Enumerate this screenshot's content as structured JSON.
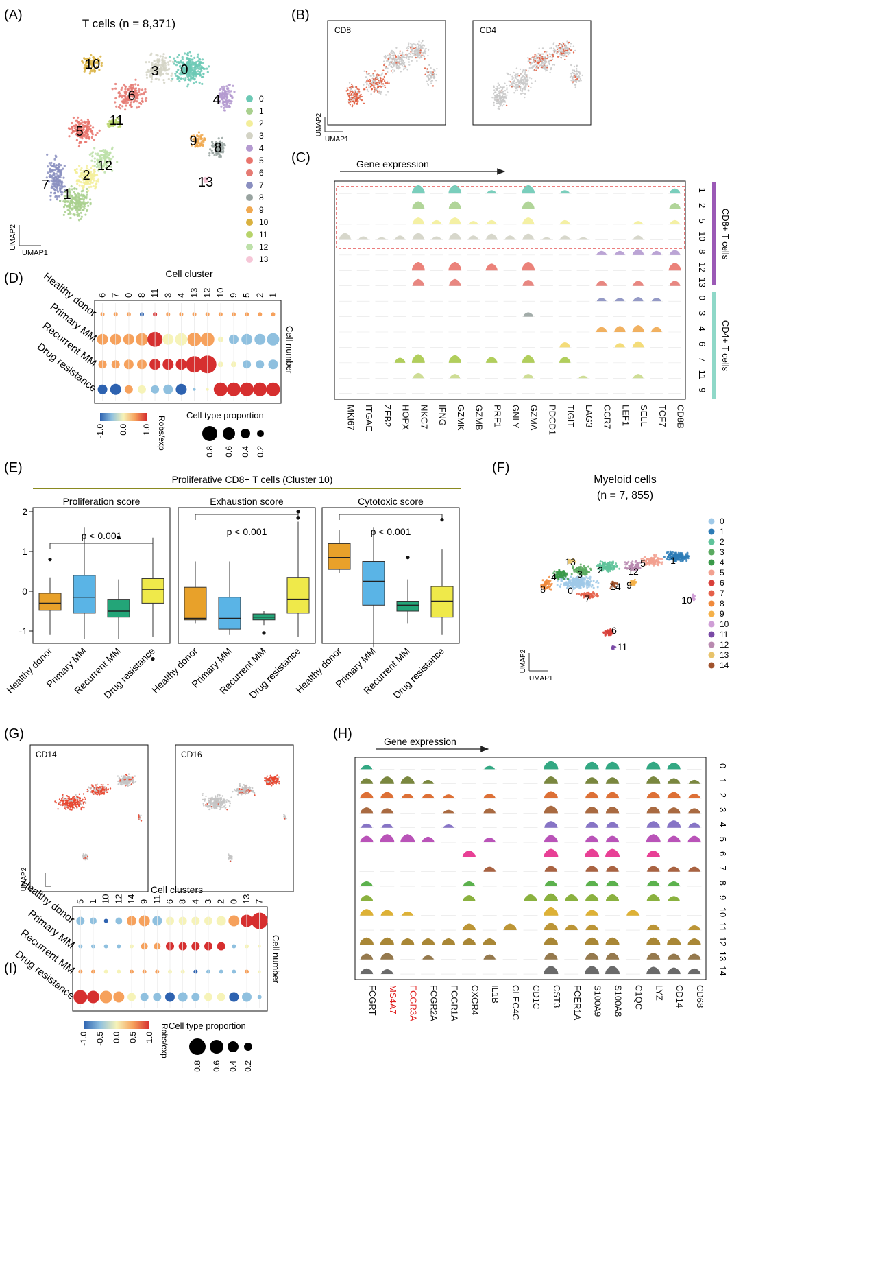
{
  "panels": {
    "A": {
      "letter": "(A)",
      "title": "T cells (n = 8,371)",
      "axis_y": "UMAP2",
      "axis_x": "UMAP1",
      "clusters": [
        "0",
        "1",
        "2",
        "3",
        "4",
        "5",
        "6",
        "7",
        "8",
        "9",
        "10",
        "11",
        "12",
        "13"
      ],
      "colors": [
        "#6cc9b5",
        "#a9d08e",
        "#f3ee9a",
        "#d3d3c5",
        "#b49ad0",
        "#e9746c",
        "#e57a73",
        "#8a8fc0",
        "#98a3a0",
        "#f0a950",
        "#d9b13f",
        "#b7d36a",
        "#bde0a9",
        "#f6c6d7"
      ]
    },
    "B": {
      "letter": "(B)",
      "plots": [
        "CD8",
        "CD4"
      ],
      "axis_y": "UMAP2",
      "axis_x": "UMAP1"
    },
    "C": {
      "letter": "(C)",
      "arrow_label": "Gene expression",
      "genes": [
        "MKI67",
        "ITGAE",
        "ZEB2",
        "HOPX",
        "NKG7",
        "IFNG",
        "GZMK",
        "GZMB",
        "PRF1",
        "GNLY",
        "GZMA",
        "PDCD1",
        "TIGIT",
        "LAG3",
        "CCR7",
        "LEF1",
        "SELL",
        "TCF7",
        "CD8B"
      ],
      "rows": [
        "1",
        "2",
        "5",
        "10",
        "8",
        "12",
        "13",
        "0",
        "3",
        "4",
        "6",
        "7",
        "11",
        "9"
      ],
      "row_colors": [
        "#6cc9b5",
        "#a9d08e",
        "#f3ee9a",
        "#d3d3c5",
        "#b49ad0",
        "#e9746c",
        "#e57a73",
        "#8a8fc0",
        "#98a3a0",
        "#f0a950",
        "#f3d86a",
        "#a9c94a",
        "#c9d98a",
        "#d9c25a"
      ],
      "group_cd8": "CD8+ T cells",
      "group_cd4": "CD4+ T cells"
    },
    "D": {
      "letter": "(D)",
      "top_label": "Cell cluster",
      "clusters": [
        "6",
        "7",
        "0",
        "8",
        "11",
        "3",
        "4",
        "13",
        "12",
        "10",
        "9",
        "5",
        "2",
        "1"
      ],
      "groups": [
        "Healthy donor",
        "Primary MM",
        "Recurrent MM",
        "Drug resistance"
      ],
      "right_label": "Cell number",
      "legend_color_title": "Robs/exp",
      "legend_color_ticks": [
        "-1.0",
        "0.0",
        "1.0"
      ],
      "legend_size_title": "Cell type proportion",
      "legend_size_ticks": [
        "0.8",
        "0.6",
        "0.4",
        "0.2"
      ]
    },
    "E": {
      "letter": "(E)",
      "header": "Proliferative CD8+ T cells (Cluster 10)",
      "y_ticks": [
        "2",
        "1",
        "0",
        "-1"
      ],
      "groups": [
        "Healthy donor",
        "Primary MM",
        "Recurrent MM",
        "Drug resistance"
      ],
      "colors": [
        "#e8a12a",
        "#5ab4e6",
        "#23a578",
        "#efe94a"
      ],
      "subplots": [
        {
          "title": "Proliferation score",
          "pvalue": "p < 0.001"
        },
        {
          "title": "Exhaustion score",
          "pvalue": "p < 0.001"
        },
        {
          "title": "Cytotoxic score",
          "pvalue": "p < 0.001"
        }
      ]
    },
    "F": {
      "letter": "(F)",
      "title_line1": "Myeloid cells",
      "title_line2": "(n = 7, 855)",
      "axis_y": "UMAP2",
      "axis_x": "UMAP1",
      "clusters": [
        "0",
        "1",
        "2",
        "3",
        "4",
        "5",
        "6",
        "7",
        "8",
        "9",
        "10",
        "11",
        "12",
        "13",
        "14"
      ],
      "colors": [
        "#9fc9e8",
        "#2c7bb6",
        "#5fc39a",
        "#5aaa60",
        "#3a9a4a",
        "#f2a08f",
        "#d8403a",
        "#e5604a",
        "#f08a3c",
        "#f5b14a",
        "#cf9ed6",
        "#7a4aa6",
        "#b98ab0",
        "#e8c36a",
        "#a0522d"
      ]
    },
    "G": {
      "letter": "(G)",
      "plots": [
        "CD14",
        "CD16"
      ],
      "axis_y": "UMAP2"
    },
    "H": {
      "letter": "(H)",
      "arrow_label": "Gene expression",
      "genes": [
        "FCGRT",
        "MS4A7",
        "FCGR3A",
        "FCGR2A",
        "FCGR1A",
        "CXCR4",
        "IL1B",
        "CLEC4C",
        "CD1C",
        "CST3",
        "FCER1A",
        "S100A9",
        "S100A8",
        "C1QC",
        "LYZ",
        "CD14",
        "CD68"
      ],
      "highlight_genes": [
        "MS4A7",
        "FCGR3A"
      ],
      "rows": [
        "0",
        "1",
        "2",
        "3",
        "4",
        "5",
        "6",
        "7",
        "8",
        "9",
        "10",
        "11",
        "12",
        "13",
        "14"
      ],
      "row_colors": [
        "#1d9e75",
        "#6b7a2a",
        "#d96020",
        "#a05a2c",
        "#7a65c0",
        "#b140b0",
        "#e62b8a",
        "#a0522d",
        "#4aa83a",
        "#7da82a",
        "#d9a820",
        "#b58a20",
        "#a07a20",
        "#8a6a3a",
        "#5a5a5a"
      ]
    },
    "I": {
      "letter": "(I)",
      "top_label": "Cell clusters",
      "clusters": [
        "5",
        "1",
        "10",
        "12",
        "14",
        "9",
        "11",
        "6",
        "8",
        "4",
        "3",
        "2",
        "0",
        "13",
        "7"
      ],
      "groups": [
        "Healthy donor",
        "Primary MM",
        "Recurrent MM",
        "Drug resistance"
      ],
      "right_label": "Cell number",
      "legend_color_title": "Robs/exp",
      "legend_color_ticks": [
        "-1.0",
        "-0.5",
        "0.0",
        "0.5",
        "1.0"
      ],
      "legend_size_title": "Cell type proportion",
      "legend_size_ticks": [
        "0.8",
        "0.6",
        "0.4",
        "0.2"
      ]
    }
  }
}
